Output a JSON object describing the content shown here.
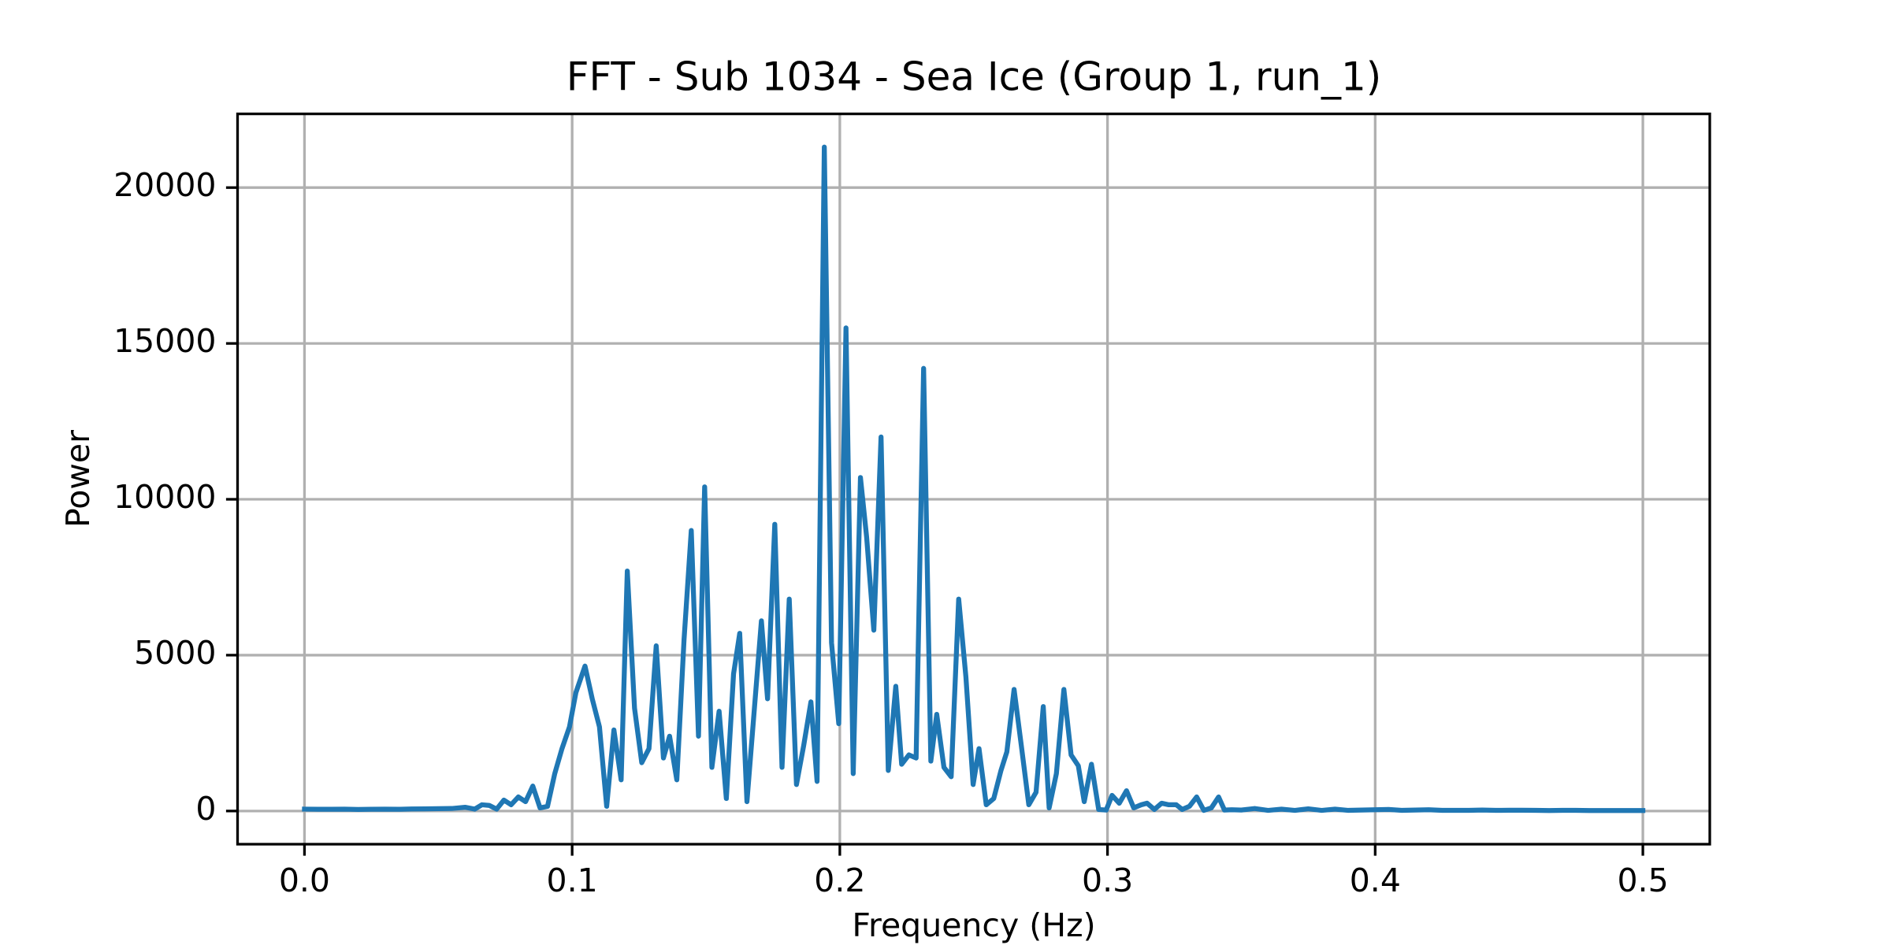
{
  "chart_data": {
    "type": "line",
    "title": "FFT - Sub 1034 - Sea Ice (Group 1, run_1)",
    "x_label": "Frequency (Hz)",
    "y_label": "Power",
    "color": "#1f77b4",
    "grid": true,
    "xlim": [
      -0.025,
      0.525
    ],
    "ylim": [
      -1065,
      22365
    ],
    "xticks": [
      {
        "value": 0,
        "label": "0.0"
      },
      0.1,
      0.2,
      0.3,
      0.4,
      0.5
    ],
    "yticks": [
      0,
      5000,
      10000,
      15000,
      20000
    ],
    "x": [
      0,
      0.005,
      0.01,
      0.015,
      0.02,
      0.025,
      0.03,
      0.035,
      0.04,
      0.045,
      0.05,
      0.055,
      0.06,
      0.0636,
      0.0663,
      0.069,
      0.0718,
      0.0745,
      0.0772,
      0.0799,
      0.0826,
      0.0853,
      0.088,
      0.0908,
      0.0935,
      0.0962,
      0.099,
      0.1014,
      0.1048,
      0.1075,
      0.1102,
      0.1129,
      0.1156,
      0.1183,
      0.1206,
      0.1233,
      0.126,
      0.1287,
      0.1314,
      0.1341,
      0.1364,
      0.1391,
      0.1418,
      0.1445,
      0.1472,
      0.1495,
      0.1522,
      0.1549,
      0.1576,
      0.1603,
      0.1626,
      0.1653,
      0.168,
      0.1707,
      0.173,
      0.1757,
      0.1784,
      0.1811,
      0.1838,
      0.1865,
      0.1892,
      0.1915,
      0.1942,
      0.1969,
      0.1996,
      0.2023,
      0.205,
      0.2077,
      0.21,
      0.2127,
      0.2154,
      0.2181,
      0.2209,
      0.2231,
      0.2258,
      0.2285,
      0.2313,
      0.234,
      0.2362,
      0.2389,
      0.2416,
      0.2444,
      0.2471,
      0.2498,
      0.252,
      0.2547,
      0.2575,
      0.2602,
      0.2624,
      0.2651,
      0.2678,
      0.2706,
      0.2733,
      0.276,
      0.2782,
      0.2809,
      0.2837,
      0.2864,
      0.2891,
      0.2913,
      0.294,
      0.2967,
      0.2995,
      0.3017,
      0.3044,
      0.3071,
      0.3098,
      0.3126,
      0.3148,
      0.3175,
      0.3202,
      0.3229,
      0.3257,
      0.3279,
      0.3306,
      0.3333,
      0.336,
      0.3388,
      0.3415,
      0.3437,
      0.3464,
      0.35,
      0.355,
      0.36,
      0.365,
      0.37,
      0.375,
      0.38,
      0.385,
      0.39,
      0.395,
      0.4,
      0.405,
      0.41,
      0.415,
      0.42,
      0.425,
      0.43,
      0.435,
      0.44,
      0.445,
      0.45,
      0.455,
      0.46,
      0.465,
      0.47,
      0.475,
      0.48,
      0.485,
      0.49,
      0.495,
      0.5
    ],
    "values": [
      60,
      55,
      55,
      60,
      50,
      55,
      60,
      55,
      65,
      70,
      75,
      80,
      120,
      60,
      200,
      180,
      60,
      350,
      200,
      450,
      300,
      800,
      100,
      150,
      1200,
      2000,
      2700,
      3800,
      4650,
      3600,
      2700,
      150,
      2600,
      1000,
      7700,
      3300,
      1550,
      2000,
      5300,
      1700,
      2400,
      1000,
      5500,
      9000,
      2400,
      10400,
      1400,
      3200,
      400,
      4400,
      5700,
      300,
      3200,
      6100,
      3600,
      9200,
      1400,
      6800,
      850,
      2100,
      3500,
      950,
      21300,
      5400,
      2800,
      15500,
      1200,
      10700,
      8800,
      5800,
      12000,
      1300,
      4000,
      1500,
      1800,
      1700,
      14200,
      1600,
      3100,
      1400,
      1100,
      6800,
      4300,
      850,
      2000,
      200,
      400,
      1300,
      1900,
      3900,
      2100,
      200,
      600,
      3350,
      100,
      1200,
      3900,
      1800,
      1450,
      300,
      1500,
      50,
      30,
      500,
      250,
      650,
      100,
      200,
      250,
      50,
      250,
      200,
      200,
      50,
      150,
      450,
      20,
      100,
      450,
      30,
      40,
      30,
      80,
      20,
      60,
      20,
      70,
      20,
      60,
      20,
      30,
      40,
      50,
      20,
      30,
      40,
      20,
      20,
      20,
      30,
      20,
      25,
      25,
      20,
      15,
      20,
      20,
      15,
      15,
      15,
      15,
      15
    ]
  }
}
